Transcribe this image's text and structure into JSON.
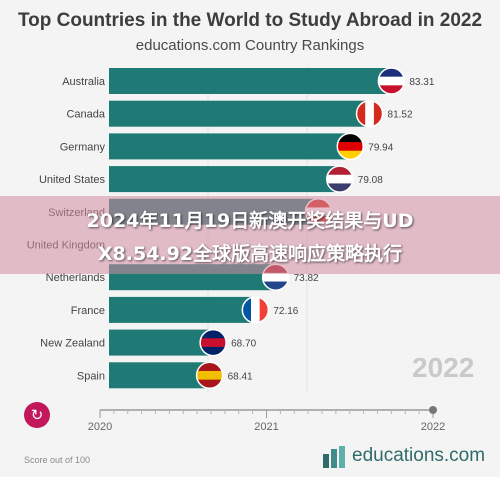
{
  "header": {
    "title": "Top Countries in the World to Study Abroad in 2022",
    "subtitle": "educations.com Country Rankings"
  },
  "overlay": {
    "line1": "2024年11月19日新澳开奖结果与UD",
    "line2": "X8.54.92全球版高速响应策略执行"
  },
  "year_display": "2022",
  "footer": {
    "score_note": "Score out of 100",
    "brand": "educations.com"
  },
  "colors": {
    "bar": "#1f7a76",
    "background": "#f4f4f4",
    "replay_button": "#c2185b",
    "overlay": "#d28ca0"
  },
  "chart_data": {
    "type": "bar",
    "orientation": "horizontal",
    "categories": [
      "Australia",
      "Canada",
      "Germany",
      "United States",
      "Switzerland",
      "United Kingdom",
      "Netherlands",
      "France",
      "New Zealand",
      "Spain"
    ],
    "values": [
      83.31,
      81.52,
      79.94,
      79.08,
      null,
      null,
      73.82,
      72.16,
      68.7,
      68.41
    ],
    "value_labels": [
      "83.31",
      "81.52",
      "79.94",
      "79.08",
      "",
      "",
      "73.82",
      "72.16",
      "68.70",
      "68.41"
    ],
    "flags": [
      "australia-flag",
      "canada-flag",
      "germany-flag",
      "usa-flag",
      "switzerland-flag",
      "uk-flag",
      "netherlands-flag",
      "france-flag",
      "new-zealand-flag",
      "spain-flag"
    ],
    "timeline": {
      "ticks": [
        "2020",
        "2021",
        "2022"
      ],
      "current": "2022"
    },
    "xlim": [
      0,
      100
    ],
    "grid": true
  }
}
